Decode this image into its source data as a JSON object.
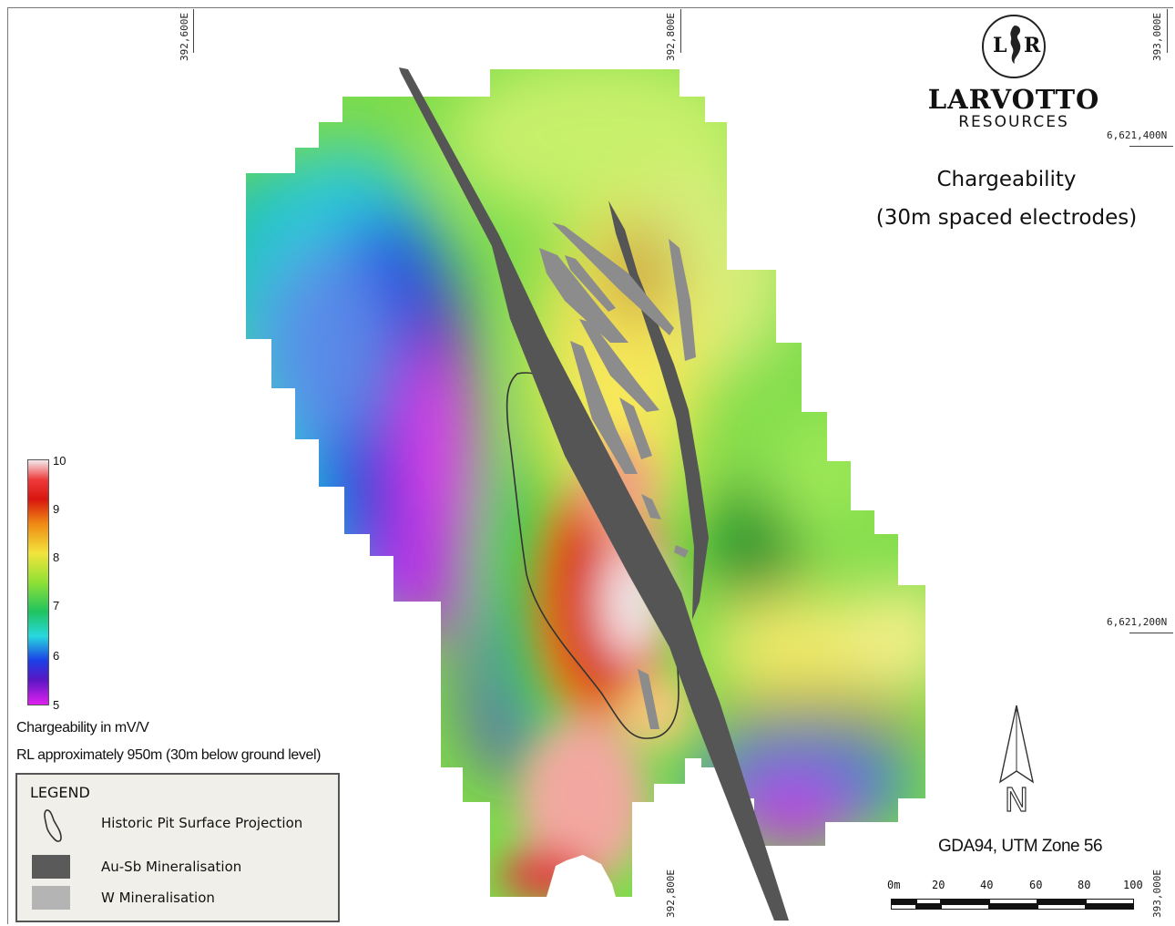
{
  "coords": {
    "easting_top_left": "392,600E",
    "easting_top_mid": "392,800E",
    "easting_top_right": "393,000E",
    "easting_bottom_mid": "392,800E",
    "easting_bottom_right": "393,000E",
    "northing_upper": "6,621,400N",
    "northing_lower": "6,621,200N"
  },
  "logo": {
    "monogram_left": "L",
    "monogram_right": "R",
    "brand": "LARVOTTO",
    "brand_sub": "RESOURCES"
  },
  "title": {
    "line1": "Chargeability",
    "line2": "(30m spaced electrodes)"
  },
  "colorbar": {
    "ticks": [
      "10",
      "9",
      "8",
      "7",
      "6",
      "5"
    ],
    "unit_label": "Chargeability in mV/V",
    "rl_note": "RL approximately 950m (30m below ground level)"
  },
  "legend": {
    "title": "LEGEND",
    "items": [
      {
        "label": "Historic Pit Surface Projection"
      },
      {
        "label": "Au-Sb Mineralisation",
        "color": "#5a5a5a"
      },
      {
        "label": "W Mineralisation",
        "color": "#b4b4b4"
      }
    ]
  },
  "north_arrow": {
    "letter": "N"
  },
  "grid_system": "GDA94, UTM Zone 56",
  "scalebar": {
    "labels": [
      "0m",
      "20",
      "40",
      "60",
      "80",
      "100"
    ]
  },
  "colors": {
    "au_sb": "#5a5a5a",
    "w_min": "#b4b4b4"
  }
}
